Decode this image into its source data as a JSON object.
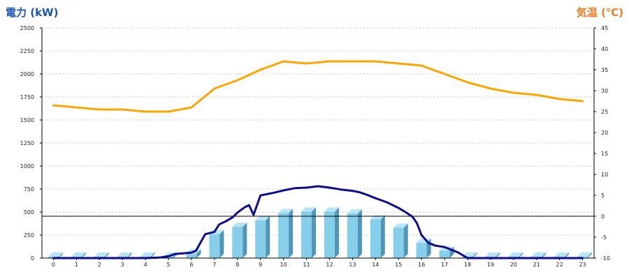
{
  "chart_data": {
    "type": "bar",
    "left_axis_label": "電力 (kW)",
    "right_axis_label": "気温 (℃)",
    "colors": {
      "left_label": "#1a55b4",
      "right_label": "#ee7b22",
      "bar_front": "#87ceeb",
      "bar_side": "#4f96b8",
      "bar_top": "#b7e4f6",
      "power_line": "#0c0c8c",
      "temp_line": "#ffa500",
      "grid": "#c8c8c8",
      "zero_line": "#000000"
    },
    "categories": [
      "0",
      "1",
      "2",
      "3",
      "4",
      "5",
      "6",
      "7",
      "8",
      "9",
      "10",
      "11",
      "12",
      "13",
      "14",
      "15",
      "16",
      "17",
      "18",
      "19",
      "20",
      "21",
      "22",
      "23"
    ],
    "left_axis": {
      "min": 0,
      "max": 2500,
      "ticks": [
        0,
        250,
        500,
        750,
        1000,
        1250,
        1500,
        1750,
        2000,
        2250,
        2500
      ]
    },
    "right_axis": {
      "min": -10,
      "max": 45,
      "ticks": [
        -10,
        -5,
        0,
        5,
        10,
        15,
        20,
        25,
        30,
        35,
        40,
        45
      ]
    },
    "grid": true,
    "series": [
      {
        "kind": "bar",
        "axis": "left",
        "values": [
          15,
          15,
          15,
          15,
          15,
          15,
          50,
          260,
          340,
          410,
          490,
          505,
          505,
          485,
          420,
          330,
          165,
          80,
          15,
          15,
          15,
          15,
          15,
          15
        ]
      },
      {
        "kind": "line",
        "axis": "left",
        "color": "#0c0c8c",
        "x": [
          0,
          1,
          2,
          3,
          4,
          4.6,
          5,
          5.3,
          5.8,
          6,
          6.2,
          6.6,
          7,
          7.2,
          7.5,
          7.8,
          8,
          8.3,
          8.5,
          8.7,
          9,
          9.5,
          10,
          10.5,
          11,
          11.5,
          12,
          12.5,
          13,
          13.3,
          13.6,
          14,
          14.5,
          15,
          15.3,
          15.6,
          15.8,
          16,
          16.3,
          16.6,
          17,
          17.3,
          17.6,
          18,
          19,
          20,
          21,
          22,
          23
        ],
        "y": [
          0,
          0,
          0,
          0,
          0,
          5,
          20,
          45,
          55,
          60,
          80,
          260,
          285,
          365,
          400,
          445,
          495,
          550,
          575,
          470,
          680,
          705,
          735,
          760,
          765,
          780,
          765,
          745,
          730,
          715,
          690,
          650,
          605,
          545,
          500,
          450,
          380,
          250,
          165,
          135,
          120,
          90,
          60,
          0,
          0,
          0,
          0,
          0,
          0
        ]
      },
      {
        "kind": "line",
        "axis": "right",
        "color": "#ffa500",
        "values": [
          26.5,
          26,
          25.5,
          25.5,
          25,
          25,
          26,
          30.5,
          32.5,
          35,
          37,
          36.5,
          37,
          37,
          37,
          36.5,
          36,
          34,
          32,
          30.5,
          29.5,
          29,
          28,
          27.5
        ]
      }
    ]
  }
}
